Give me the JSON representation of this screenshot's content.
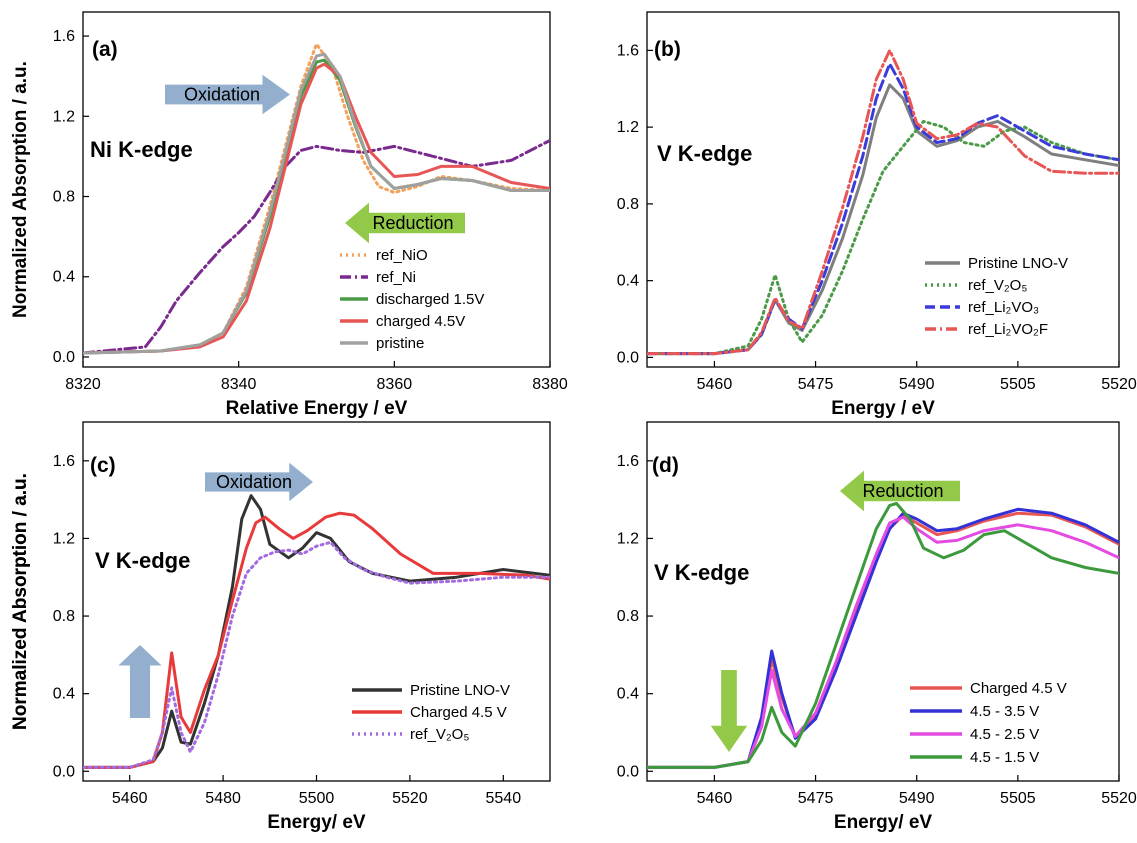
{
  "chart_data": [
    {
      "type": "line",
      "panel_label": "(a)",
      "annotation": "Ni K-edge",
      "xlabel": "Relative Energy  / eV",
      "ylabel": "Normalized Absorption / a.u.",
      "xlim": [
        8320,
        8380
      ],
      "ylim": [
        -0.05,
        1.72
      ],
      "xticks": [
        8320,
        8340,
        8360,
        8380
      ],
      "yticks": [
        0.0,
        0.4,
        0.8,
        1.2,
        1.6
      ],
      "arrows": [
        {
          "label": "Oxidation",
          "direction": "right",
          "color": "#8eaacb"
        },
        {
          "label": "Reduction",
          "direction": "left",
          "color": "#8dc63f"
        }
      ],
      "legend_position": "bottom-right",
      "series": [
        {
          "name": "ref_NiO",
          "color": "#f4a15b",
          "style": "dot",
          "x": [
            8320,
            8330,
            8335,
            8338,
            8341,
            8344,
            8346,
            8348,
            8350,
            8352,
            8354,
            8356,
            8358,
            8360,
            8363,
            8366,
            8370,
            8375,
            8380
          ],
          "y": [
            0.02,
            0.03,
            0.06,
            0.12,
            0.35,
            0.75,
            1.05,
            1.35,
            1.56,
            1.45,
            1.2,
            0.98,
            0.85,
            0.82,
            0.85,
            0.9,
            0.88,
            0.84,
            0.83
          ]
        },
        {
          "name": "ref_Ni",
          "color": "#7a2a8e",
          "style": "dashdot",
          "x": [
            8320,
            8328,
            8330,
            8332,
            8335,
            8338,
            8340,
            8342,
            8344,
            8346,
            8348,
            8350,
            8353,
            8356,
            8360,
            8365,
            8370,
            8375,
            8380
          ],
          "y": [
            0.02,
            0.05,
            0.15,
            0.28,
            0.42,
            0.55,
            0.62,
            0.7,
            0.82,
            0.95,
            1.03,
            1.05,
            1.03,
            1.02,
            1.05,
            1.0,
            0.95,
            0.98,
            1.08
          ]
        },
        {
          "name": "discharged 1.5V",
          "color": "#4a9a47",
          "style": "solid",
          "x": [
            8320,
            8330,
            8335,
            8338,
            8341,
            8344,
            8346,
            8348,
            8350,
            8351,
            8353,
            8355,
            8357,
            8360,
            8363,
            8366,
            8370,
            8375,
            8380
          ],
          "y": [
            0.02,
            0.03,
            0.06,
            0.12,
            0.32,
            0.7,
            1.0,
            1.3,
            1.47,
            1.48,
            1.38,
            1.15,
            0.95,
            0.84,
            0.86,
            0.89,
            0.88,
            0.83,
            0.83
          ]
        },
        {
          "name": "charged      4.5V",
          "color": "#e85555",
          "style": "solid",
          "x": [
            8320,
            8330,
            8335,
            8338,
            8341,
            8344,
            8346,
            8348,
            8350,
            8351,
            8353,
            8355,
            8357,
            8360,
            8363,
            8366,
            8370,
            8375,
            8380
          ],
          "y": [
            0.02,
            0.03,
            0.05,
            0.1,
            0.28,
            0.64,
            0.95,
            1.26,
            1.44,
            1.46,
            1.4,
            1.2,
            1.02,
            0.9,
            0.91,
            0.95,
            0.95,
            0.87,
            0.84
          ]
        },
        {
          "name": "pristine",
          "color": "#a0a0a0",
          "style": "solid",
          "x": [
            8320,
            8330,
            8335,
            8338,
            8341,
            8344,
            8346,
            8348,
            8350,
            8351,
            8353,
            8355,
            8357,
            8360,
            8363,
            8366,
            8370,
            8375,
            8380
          ],
          "y": [
            0.02,
            0.03,
            0.06,
            0.12,
            0.33,
            0.72,
            1.02,
            1.33,
            1.5,
            1.51,
            1.4,
            1.16,
            0.95,
            0.84,
            0.86,
            0.89,
            0.88,
            0.83,
            0.83
          ]
        }
      ]
    },
    {
      "type": "line",
      "panel_label": "(b)",
      "annotation": "V K-edge",
      "xlabel": "Energy / eV",
      "ylabel": "",
      "xlim": [
        5450,
        5520
      ],
      "ylim": [
        -0.05,
        1.8
      ],
      "xticks": [
        5460,
        5475,
        5490,
        5505,
        5520
      ],
      "yticks": [
        0.0,
        0.4,
        0.8,
        1.2,
        1.6
      ],
      "legend_position": "bottom-right",
      "series": [
        {
          "name": "Pristine LNO-V",
          "color": "#7f7f7f",
          "style": "solid",
          "x": [
            5450,
            5460,
            5465,
            5467,
            5469,
            5471,
            5473,
            5476,
            5479,
            5482,
            5484,
            5486,
            5488,
            5490,
            5493,
            5496,
            5499,
            5502,
            5506,
            5510,
            5515,
            5520
          ],
          "y": [
            0.02,
            0.02,
            0.04,
            0.12,
            0.3,
            0.18,
            0.14,
            0.35,
            0.62,
            0.95,
            1.25,
            1.42,
            1.35,
            1.18,
            1.1,
            1.13,
            1.2,
            1.23,
            1.15,
            1.06,
            1.03,
            1.0
          ]
        },
        {
          "name": "ref_V₂O₅",
          "color": "#4a9a47",
          "style": "dot",
          "x": [
            5450,
            5460,
            5465,
            5467,
            5469,
            5471,
            5473,
            5476,
            5479,
            5482,
            5485,
            5488,
            5491,
            5494,
            5497,
            5500,
            5503,
            5506,
            5510,
            5515,
            5520
          ],
          "y": [
            0.02,
            0.02,
            0.06,
            0.2,
            0.43,
            0.2,
            0.08,
            0.22,
            0.45,
            0.72,
            0.97,
            1.1,
            1.23,
            1.2,
            1.12,
            1.1,
            1.18,
            1.2,
            1.12,
            1.06,
            1.03
          ]
        },
        {
          "name": "ref_Li₂VO₃",
          "color": "#3b3bd9",
          "style": "dash",
          "x": [
            5450,
            5460,
            5465,
            5467,
            5469,
            5471,
            5473,
            5476,
            5479,
            5482,
            5484,
            5486,
            5488,
            5490,
            5493,
            5496,
            5499,
            5502,
            5506,
            5510,
            5515,
            5520
          ],
          "y": [
            0.02,
            0.02,
            0.04,
            0.12,
            0.3,
            0.2,
            0.15,
            0.4,
            0.7,
            1.05,
            1.35,
            1.53,
            1.4,
            1.2,
            1.12,
            1.14,
            1.22,
            1.26,
            1.18,
            1.1,
            1.06,
            1.03
          ]
        },
        {
          "name": "ref_Li₂VO₂F",
          "color": "#e85555",
          "style": "dashdot",
          "x": [
            5450,
            5460,
            5465,
            5467,
            5469,
            5471,
            5473,
            5476,
            5479,
            5482,
            5484,
            5486,
            5488,
            5490,
            5493,
            5496,
            5499,
            5502,
            5506,
            5510,
            5515,
            5520
          ],
          "y": [
            0.02,
            0.02,
            0.04,
            0.13,
            0.31,
            0.19,
            0.15,
            0.45,
            0.78,
            1.15,
            1.45,
            1.6,
            1.45,
            1.22,
            1.14,
            1.16,
            1.22,
            1.2,
            1.05,
            0.97,
            0.96,
            0.96
          ]
        }
      ]
    },
    {
      "type": "line",
      "panel_label": "(c)",
      "annotation": "V K-edge",
      "xlabel": "Energy/ eV",
      "ylabel": "Normalized Absorption  / a.u.",
      "xlim": [
        5450,
        5550
      ],
      "ylim": [
        -0.05,
        1.8
      ],
      "xticks": [
        5460,
        5480,
        5500,
        5520,
        5540
      ],
      "yticks": [
        0.0,
        0.4,
        0.8,
        1.2,
        1.6
      ],
      "arrows": [
        {
          "label": "Oxidation",
          "direction": "right",
          "color": "#8eaacb"
        },
        {
          "label": "",
          "direction": "up",
          "color": "#8eaacb"
        }
      ],
      "legend_position": "bottom-right",
      "series": [
        {
          "name": "Pristine LNO-V",
          "color": "#333333",
          "style": "solid",
          "x": [
            5450,
            5460,
            5465,
            5467,
            5469,
            5471,
            5473,
            5476,
            5479,
            5482,
            5484,
            5486,
            5488,
            5490,
            5494,
            5497,
            5500,
            5503,
            5507,
            5512,
            5520,
            5530,
            5540,
            5550
          ],
          "y": [
            0.02,
            0.02,
            0.05,
            0.12,
            0.31,
            0.15,
            0.14,
            0.35,
            0.6,
            0.95,
            1.3,
            1.42,
            1.35,
            1.17,
            1.1,
            1.15,
            1.23,
            1.2,
            1.08,
            1.02,
            0.98,
            1.0,
            1.04,
            1.01
          ]
        },
        {
          "name": "Charged 4.5 V",
          "color": "#e83a3a",
          "style": "solid",
          "x": [
            5450,
            5460,
            5465,
            5467,
            5469,
            5471,
            5473,
            5476,
            5479,
            5482,
            5485,
            5487,
            5489,
            5492,
            5495,
            5498,
            5502,
            5505,
            5508,
            5512,
            5518,
            5525,
            5535,
            5545,
            5550
          ],
          "y": [
            0.02,
            0.02,
            0.05,
            0.2,
            0.61,
            0.28,
            0.2,
            0.42,
            0.6,
            0.88,
            1.15,
            1.28,
            1.31,
            1.25,
            1.2,
            1.24,
            1.31,
            1.33,
            1.32,
            1.25,
            1.12,
            1.02,
            1.02,
            1.01,
            0.99
          ]
        },
        {
          "name": "ref_V₂O₅",
          "color": "#a36be0",
          "style": "dot",
          "x": [
            5450,
            5460,
            5465,
            5467,
            5469,
            5471,
            5473,
            5476,
            5479,
            5482,
            5485,
            5488,
            5491,
            5494,
            5497,
            5500,
            5503,
            5506,
            5510,
            5515,
            5520,
            5530,
            5540,
            5550
          ],
          "y": [
            0.02,
            0.02,
            0.06,
            0.2,
            0.43,
            0.2,
            0.1,
            0.25,
            0.5,
            0.8,
            1.02,
            1.1,
            1.13,
            1.14,
            1.12,
            1.16,
            1.18,
            1.1,
            1.04,
            1.0,
            0.97,
            0.98,
            1.0,
            1.0
          ]
        }
      ]
    },
    {
      "type": "line",
      "panel_label": "(d)",
      "annotation": "V K-edge",
      "xlabel": "Energy/ eV",
      "ylabel": "Normalized Absorption / a.u.",
      "xlim": [
        5450,
        5520
      ],
      "ylim": [
        -0.05,
        1.8
      ],
      "xticks": [
        5460,
        5475,
        5490,
        5505,
        5520
      ],
      "yticks": [
        0.0,
        0.4,
        0.8,
        1.2,
        1.6
      ],
      "arrows": [
        {
          "label": "Reduction",
          "direction": "left",
          "color": "#8dc63f"
        },
        {
          "label": "",
          "direction": "down",
          "color": "#8dc63f"
        }
      ],
      "legend_position": "bottom-right",
      "series": [
        {
          "name": "Charged 4.5 V",
          "color": "#e85555",
          "style": "solid",
          "x": [
            5450,
            5460,
            5465,
            5467,
            5468.5,
            5470,
            5472,
            5475,
            5478,
            5481,
            5484,
            5486,
            5488,
            5490,
            5493,
            5496,
            5500,
            5505,
            5510,
            5515,
            5520
          ],
          "y": [
            0.02,
            0.02,
            0.05,
            0.25,
            0.58,
            0.38,
            0.18,
            0.28,
            0.55,
            0.82,
            1.1,
            1.25,
            1.32,
            1.28,
            1.22,
            1.24,
            1.29,
            1.33,
            1.32,
            1.26,
            1.17
          ]
        },
        {
          "name": "4.5 - 3.5 V",
          "color": "#3232d6",
          "style": "solid",
          "x": [
            5450,
            5460,
            5465,
            5467,
            5468.5,
            5470,
            5472,
            5475,
            5478,
            5481,
            5484,
            5486,
            5488,
            5490,
            5493,
            5496,
            5500,
            5505,
            5510,
            5515,
            5520
          ],
          "y": [
            0.02,
            0.02,
            0.05,
            0.28,
            0.62,
            0.4,
            0.17,
            0.27,
            0.52,
            0.8,
            1.08,
            1.25,
            1.33,
            1.3,
            1.24,
            1.25,
            1.3,
            1.35,
            1.33,
            1.27,
            1.18
          ]
        },
        {
          "name": "4.5 - 2.5 V",
          "color": "#e34be3",
          "style": "solid",
          "x": [
            5450,
            5460,
            5465,
            5467,
            5468.5,
            5470,
            5472,
            5475,
            5478,
            5481,
            5484,
            5486,
            5488,
            5490,
            5493,
            5496,
            5500,
            5505,
            5510,
            5515,
            5520
          ],
          "y": [
            0.02,
            0.02,
            0.05,
            0.23,
            0.52,
            0.32,
            0.18,
            0.3,
            0.56,
            0.85,
            1.12,
            1.28,
            1.31,
            1.25,
            1.18,
            1.19,
            1.24,
            1.27,
            1.24,
            1.18,
            1.1
          ]
        },
        {
          "name": "4.5 - 1.5 V",
          "color": "#3c9a3c",
          "style": "solid",
          "x": [
            5450,
            5460,
            5465,
            5467,
            5468.5,
            5470,
            5472,
            5475,
            5478,
            5481,
            5484,
            5486,
            5487,
            5489,
            5491,
            5494,
            5497,
            5500,
            5503,
            5506,
            5510,
            5515,
            5520
          ],
          "y": [
            0.02,
            0.02,
            0.05,
            0.16,
            0.33,
            0.2,
            0.13,
            0.35,
            0.65,
            0.95,
            1.25,
            1.37,
            1.38,
            1.3,
            1.15,
            1.1,
            1.14,
            1.22,
            1.24,
            1.18,
            1.1,
            1.05,
            1.02
          ]
        }
      ]
    }
  ]
}
